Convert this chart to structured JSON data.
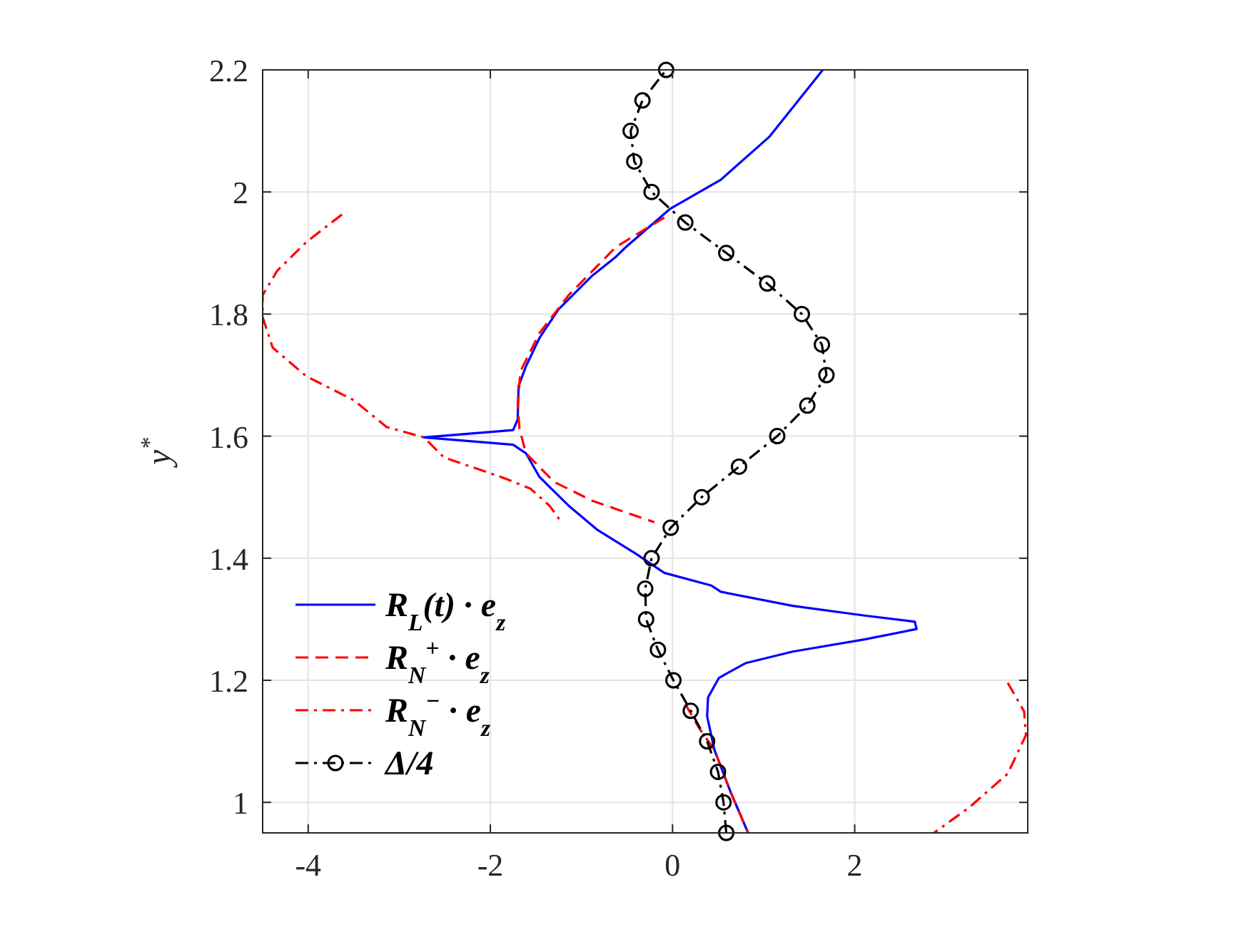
{
  "chart_data": {
    "type": "line",
    "ylabel": "y$^{*}$",
    "xlim": [
      -4.5,
      3.9
    ],
    "ylim": [
      0.95,
      2.2
    ],
    "xticks": [
      -4,
      -2,
      0,
      2
    ],
    "yticks": [
      1,
      1.2,
      1.4,
      1.6,
      1.8,
      2,
      2.2
    ],
    "grid": true,
    "legend": "bottom left",
    "series": [
      {
        "name": "R$_{L}$(t) · e$_{z}$",
        "color": "#0000ff",
        "line_style": "solid",
        "marker": "none",
        "x": [
          1.65,
          1.06,
          0.53,
          -0.03,
          -0.51,
          -0.62,
          -0.88,
          -1.25,
          -1.46,
          -1.61,
          -1.69,
          -1.7,
          -1.75,
          -2.73,
          -1.75,
          -1.61,
          -1.46,
          -1.14,
          -0.83,
          -0.41,
          -0.09,
          0.43,
          0.53,
          1.32,
          2.11,
          2.66,
          2.68,
          2.11,
          1.32,
          0.8,
          0.51,
          0.39,
          0.38,
          0.46,
          0.64,
          0.83
        ],
        "values": [
          2.2,
          2.09,
          2.02,
          1.972,
          1.91,
          1.894,
          1.863,
          1.808,
          1.761,
          1.714,
          1.682,
          1.627,
          1.61,
          1.598,
          1.586,
          1.572,
          1.533,
          1.486,
          1.447,
          1.408,
          1.376,
          1.355,
          1.345,
          1.322,
          1.306,
          1.296,
          1.284,
          1.267,
          1.247,
          1.228,
          1.204,
          1.172,
          1.141,
          1.086,
          1.016,
          0.95
        ]
      },
      {
        "name": "R$_{N}$$^{+}$ · e$_{z}$",
        "color": "#ff0000",
        "line_style": "dashed",
        "marker": "none",
        "x": [
          -0.09,
          -0.62,
          -1.14,
          -1.46,
          -1.67,
          -1.7,
          -1.68,
          -1.61,
          -1.3,
          -0.88,
          -0.2,
          null,
          0.14,
          0.3,
          0.46,
          0.64,
          0.83
        ],
        "values": [
          1.958,
          1.91,
          1.831,
          1.769,
          1.706,
          1.651,
          1.612,
          1.572,
          1.525,
          1.494,
          1.459,
          null,
          1.161,
          1.12,
          1.086,
          1.016,
          0.95
        ]
      },
      {
        "name": "R$_{N}$$^{−}$ · e$_{z}$",
        "color": "#ff0000",
        "line_style": "dashdot",
        "marker": "none",
        "x": [
          -3.63,
          -4.02,
          -4.34,
          -4.5,
          -4.5,
          -4.39,
          -4.02,
          -3.5,
          -3.14,
          -2.73,
          -2.51,
          -1.88,
          -1.56,
          -1.35,
          -1.22,
          null,
          3.68,
          3.86,
          3.88,
          3.68,
          3.26,
          2.87
        ],
        "values": [
          1.963,
          1.918,
          1.871,
          1.831,
          1.795,
          1.745,
          1.698,
          1.659,
          1.615,
          1.598,
          1.565,
          1.533,
          1.514,
          1.486,
          1.459,
          null,
          1.196,
          1.149,
          1.11,
          1.047,
          0.992,
          0.95
        ]
      },
      {
        "name": "Δ/4",
        "color": "#000000",
        "line_style": "dashdot",
        "marker": "circle",
        "x": [
          0.59,
          0.56,
          0.5,
          0.38,
          0.2,
          0.01,
          -0.16,
          -0.29,
          -0.3,
          -0.23,
          -0.02,
          0.32,
          0.73,
          1.15,
          1.48,
          1.69,
          1.64,
          1.42,
          1.04,
          0.59,
          0.14,
          -0.23,
          -0.42,
          -0.46,
          -0.33,
          -0.07
        ],
        "values": [
          0.95,
          1.0,
          1.05,
          1.1,
          1.15,
          1.2,
          1.25,
          1.3,
          1.35,
          1.4,
          1.45,
          1.5,
          1.55,
          1.6,
          1.65,
          1.7,
          1.75,
          1.8,
          1.85,
          1.9,
          1.95,
          2.0,
          2.05,
          2.1,
          2.15,
          2.2
        ]
      }
    ]
  }
}
